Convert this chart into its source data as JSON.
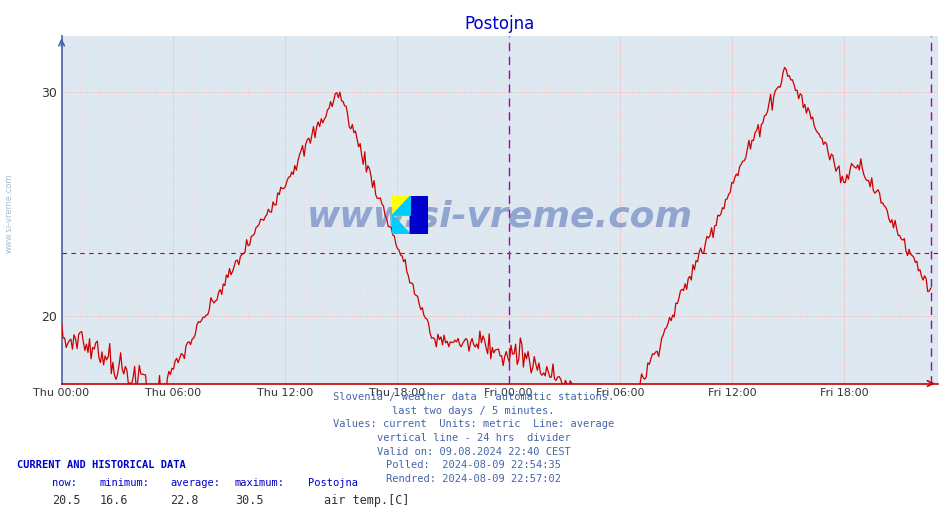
{
  "title": "Postojna",
  "title_color": "#0000cc",
  "bg_color": "#ffffff",
  "plot_bg_color": "#dde8f0",
  "line_color": "#cc0000",
  "line_width": 1.0,
  "y_min": 17.0,
  "y_max": 32.5,
  "y_ticks": [
    20,
    30
  ],
  "x_labels": [
    "Thu 00:00",
    "Thu 06:00",
    "Thu 12:00",
    "Thu 18:00",
    "Fri 00:00",
    "Fri 06:00",
    "Fri 12:00",
    "Fri 18:00"
  ],
  "grid_color": "#ffaaaa",
  "avg_line_color": "#cc0000",
  "avg_value": 22.8,
  "vertical_line_color": "#aa00aa",
  "watermark": "www.si-vreme.com",
  "watermark_color": "#3355aa",
  "footer_lines": [
    "Slovenia / weather data - automatic stations.",
    "last two days / 5 minutes.",
    "Values: current  Units: metric  Line: average",
    "vertical line - 24 hrs  divider",
    "Valid on: 09.08.2024 22:40 CEST",
    "Polled:  2024-08-09 22:54:35",
    "Rendred: 2024-08-09 22:57:02"
  ],
  "footer_color": "#4466aa",
  "current_label": "CURRENT AND HISTORICAL DATA",
  "stat_now": "20.5",
  "stat_min": "16.6",
  "stat_avg": "22.8",
  "stat_max": "30.5",
  "stat_station": "Postojna",
  "stat_series": "air temp.[C]",
  "left_watermark_color": "#aabbcc",
  "spine_left_color": "#4466aa",
  "spine_bottom_color": "#cc0000"
}
